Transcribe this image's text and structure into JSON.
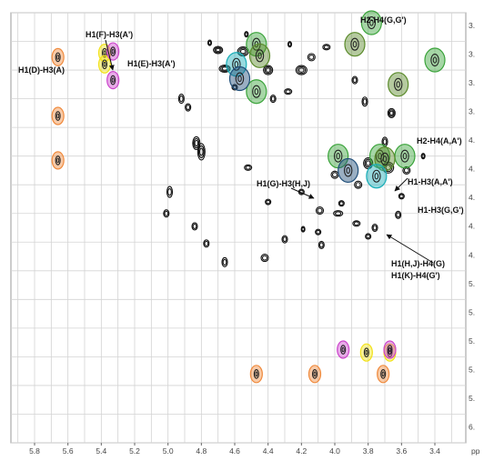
{
  "chart_data": {
    "type": "scatter",
    "title": "",
    "xlabel": "",
    "ylabel": "",
    "x_unit_label": "pp",
    "xlim": [
      5.9,
      3.2
    ],
    "ylim": [
      3.0,
      6.0
    ],
    "x_ticks": [
      5.8,
      5.6,
      5.4,
      5.2,
      5.0,
      4.8,
      4.6,
      4.4,
      4.2,
      4.0,
      3.8,
      3.6,
      3.4
    ],
    "x_tick_labels": [
      "5.8",
      "5.6",
      "5.4",
      "5.2",
      "5.0",
      "4.8",
      "4.6",
      "4.4",
      "4.2",
      "4.0",
      "3.8",
      "3.6",
      "3.4"
    ],
    "y_tick_labels": [
      "3.",
      "3.",
      "3.",
      "3.",
      "4.",
      "4.",
      "4.",
      "4.",
      "4.",
      "5.",
      "5.",
      "5.",
      "5.",
      "5.",
      "6."
    ],
    "grid": true,
    "colors": {
      "orange": "#f08a3c",
      "yellow": "#f2e21a",
      "magenta": "#cc44cc",
      "green": "#3aa33a",
      "olive": "#5a8a2a",
      "teal": "#1aaeb8",
      "navy": "#1f4e79",
      "contour": "#111111"
    },
    "series": [
      {
        "color": "orange",
        "points": [
          [
            5.66,
            3.31
          ],
          [
            5.66,
            3.72
          ],
          [
            5.66,
            4.03
          ],
          [
            4.47,
            5.52
          ],
          [
            4.12,
            5.52
          ],
          [
            3.71,
            5.52
          ]
        ]
      },
      {
        "color": "yellow",
        "points": [
          [
            5.38,
            3.28
          ],
          [
            5.38,
            3.36
          ],
          [
            3.81,
            5.37
          ],
          [
            3.67,
            5.37
          ]
        ]
      },
      {
        "color": "magenta",
        "points": [
          [
            5.33,
            3.27
          ],
          [
            5.33,
            3.47
          ],
          [
            3.95,
            5.35
          ],
          [
            3.67,
            5.35
          ]
        ]
      },
      {
        "color": "green",
        "points": [
          [
            4.47,
            3.22
          ],
          [
            4.47,
            3.55
          ],
          [
            3.78,
            3.07
          ],
          [
            3.4,
            3.33
          ],
          [
            3.98,
            4.0
          ],
          [
            3.73,
            4.0
          ],
          [
            3.58,
            4.0
          ]
        ]
      },
      {
        "color": "olive",
        "points": [
          [
            4.45,
            3.3
          ],
          [
            3.88,
            3.22
          ],
          [
            3.62,
            3.5
          ],
          [
            3.7,
            4.02
          ]
        ]
      },
      {
        "color": "teal",
        "points": [
          [
            4.59,
            3.36
          ],
          [
            3.75,
            4.14
          ]
        ]
      },
      {
        "color": "navy",
        "points": [
          [
            4.57,
            3.46
          ],
          [
            3.92,
            4.1
          ]
        ]
      }
    ],
    "annotations": [
      "H1(D)-H3(A)",
      "H1(F)-H3(A')",
      "H1(E)-H3(A')",
      "H2-H4(G,G')",
      "H2-H4(A,A')",
      "H1-H3(A,A')",
      "H1(G)-H3(H,J)",
      "H1-H3(G,G')",
      "H1(H,J)-H4(G)",
      "H1(K)-H4(G')"
    ]
  }
}
